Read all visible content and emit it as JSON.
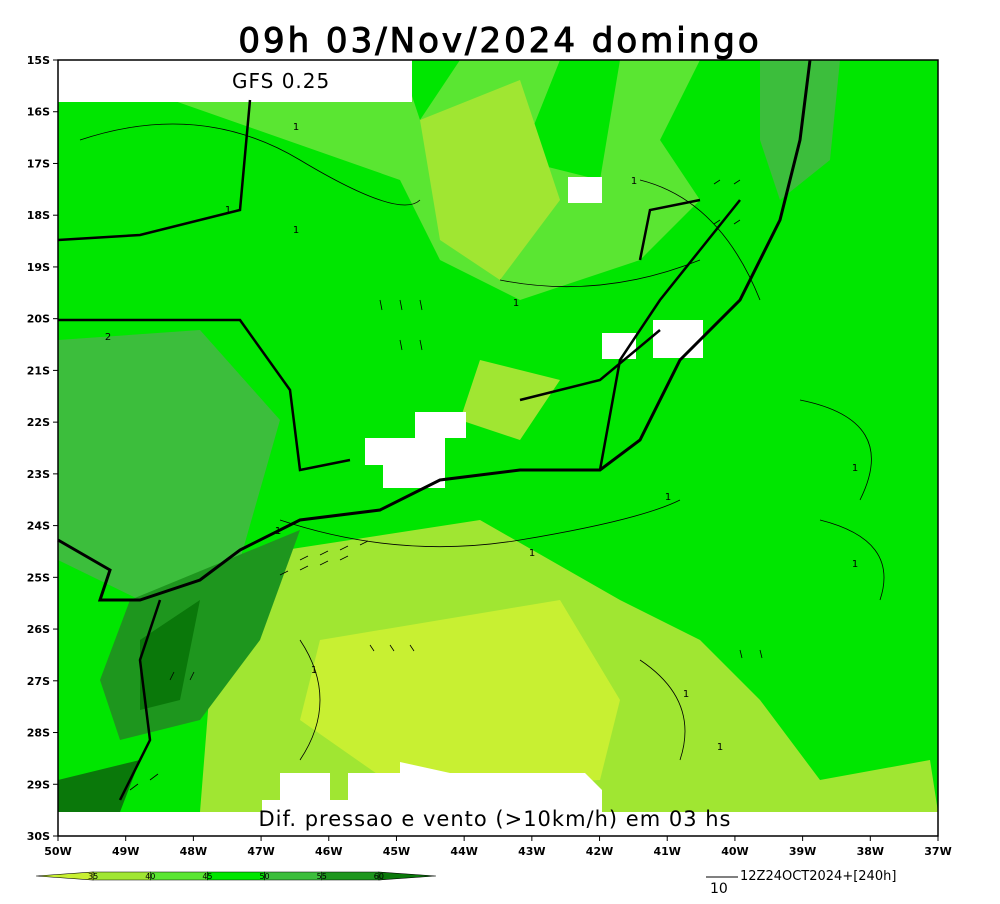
{
  "header": {
    "title": "09h 03/Nov/2024 domingo",
    "model": "GFS 0.25",
    "caption": "Dif. pressao e vento (>10km/h) em 03 hs"
  },
  "axes": {
    "lat_labels": [
      "15S",
      "16S",
      "17S",
      "18S",
      "19S",
      "20S",
      "21S",
      "22S",
      "23S",
      "24S",
      "25S",
      "26S",
      "27S",
      "28S",
      "29S",
      "30S"
    ],
    "lon_labels": [
      "50W",
      "49W",
      "48W",
      "47W",
      "46W",
      "45W",
      "44W",
      "43W",
      "42W",
      "41W",
      "40W",
      "39W",
      "38W",
      "37W"
    ]
  },
  "contour_labels": [
    "1",
    "1",
    "1",
    "1",
    "1",
    "2",
    "1",
    "1",
    "1",
    "1",
    "1",
    "1",
    "1",
    "1"
  ],
  "colorbar": {
    "levels": [
      35,
      40,
      45,
      50,
      55,
      60
    ],
    "colors": [
      "#c8f032",
      "#a0e632",
      "#5ae632",
      "#00e600",
      "#3cbe3c",
      "#1e961e",
      "#0a780a"
    ]
  },
  "reference_vector": {
    "magnitude": "10",
    "run": "12Z24OCT2024+[240h]"
  }
}
